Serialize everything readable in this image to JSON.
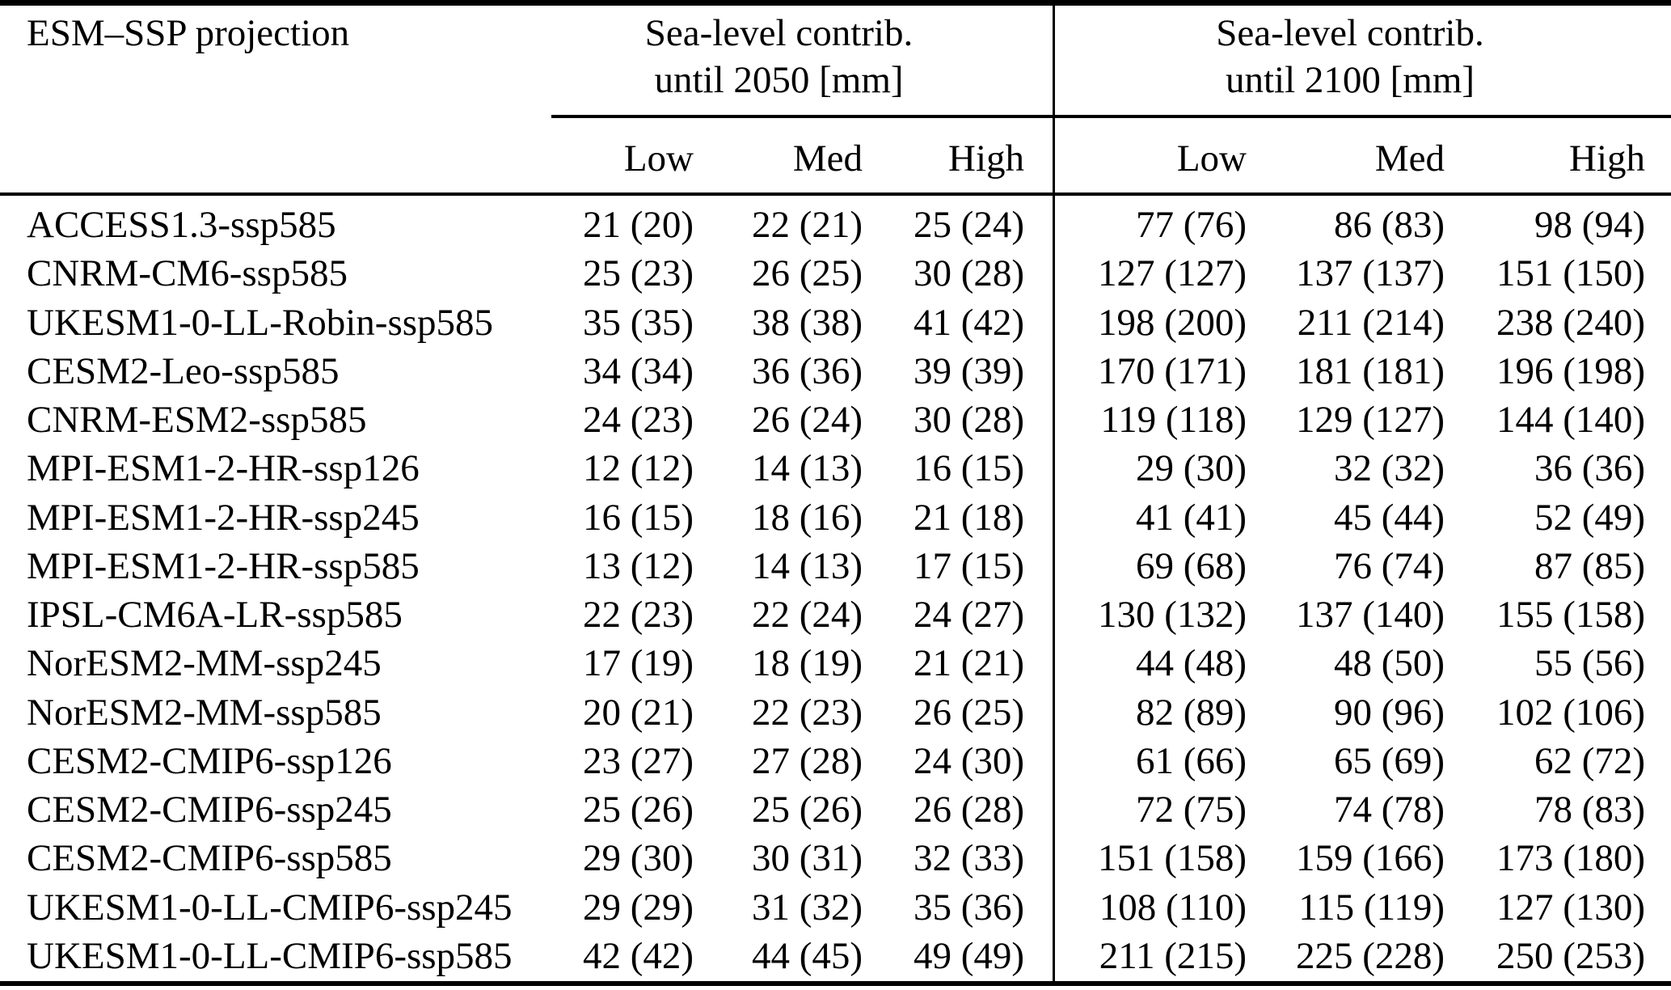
{
  "table": {
    "col1_header": "ESM–SSP projection",
    "groups": [
      {
        "title_line1": "Sea-level contrib.",
        "title_line2": "until 2050 [mm]",
        "subcols": [
          "Low",
          "Med",
          "High"
        ]
      },
      {
        "title_line1": "Sea-level contrib.",
        "title_line2": "until 2100 [mm]",
        "subcols": [
          "Low",
          "Med",
          "High"
        ]
      }
    ],
    "rows": [
      {
        "label": "ACCESS1.3-ssp585",
        "v2050": [
          "21 (20)",
          "22 (21)",
          "25 (24)"
        ],
        "v2100": [
          "77 (76)",
          "86 (83)",
          "98 (94)"
        ]
      },
      {
        "label": "CNRM-CM6-ssp585",
        "v2050": [
          "25 (23)",
          "26 (25)",
          "30 (28)"
        ],
        "v2100": [
          "127 (127)",
          "137 (137)",
          "151 (150)"
        ]
      },
      {
        "label": "UKESM1-0-LL-Robin-ssp585",
        "v2050": [
          "35 (35)",
          "38 (38)",
          "41 (42)"
        ],
        "v2100": [
          "198 (200)",
          "211 (214)",
          "238 (240)"
        ]
      },
      {
        "label": "CESM2-Leo-ssp585",
        "v2050": [
          "34 (34)",
          "36 (36)",
          "39 (39)"
        ],
        "v2100": [
          "170 (171)",
          "181 (181)",
          "196 (198)"
        ]
      },
      {
        "label": "CNRM-ESM2-ssp585",
        "v2050": [
          "24 (23)",
          "26 (24)",
          "30 (28)"
        ],
        "v2100": [
          "119 (118)",
          "129 (127)",
          "144 (140)"
        ]
      },
      {
        "label": "MPI-ESM1-2-HR-ssp126",
        "v2050": [
          "12 (12)",
          "14 (13)",
          "16 (15)"
        ],
        "v2100": [
          "29 (30)",
          "32 (32)",
          "36 (36)"
        ]
      },
      {
        "label": "MPI-ESM1-2-HR-ssp245",
        "v2050": [
          "16 (15)",
          "18 (16)",
          "21 (18)"
        ],
        "v2100": [
          "41 (41)",
          "45 (44)",
          "52 (49)"
        ]
      },
      {
        "label": "MPI-ESM1-2-HR-ssp585",
        "v2050": [
          "13 (12)",
          "14 (13)",
          "17 (15)"
        ],
        "v2100": [
          "69 (68)",
          "76 (74)",
          "87 (85)"
        ]
      },
      {
        "label": "IPSL-CM6A-LR-ssp585",
        "v2050": [
          "22 (23)",
          "22 (24)",
          "24 (27)"
        ],
        "v2100": [
          "130 (132)",
          "137 (140)",
          "155 (158)"
        ]
      },
      {
        "label": "NorESM2-MM-ssp245",
        "v2050": [
          "17 (19)",
          "18 (19)",
          "21 (21)"
        ],
        "v2100": [
          "44 (48)",
          "48 (50)",
          "55 (56)"
        ]
      },
      {
        "label": "NorESM2-MM-ssp585",
        "v2050": [
          "20 (21)",
          "22 (23)",
          "26 (25)"
        ],
        "v2100": [
          "82 (89)",
          "90 (96)",
          "102 (106)"
        ]
      },
      {
        "label": "CESM2-CMIP6-ssp126",
        "v2050": [
          "23 (27)",
          "27 (28)",
          "24 (30)"
        ],
        "v2100": [
          "61 (66)",
          "65 (69)",
          "62 (72)"
        ]
      },
      {
        "label": "CESM2-CMIP6-ssp245",
        "v2050": [
          "25 (26)",
          "25 (26)",
          "26 (28)"
        ],
        "v2100": [
          "72 (75)",
          "74 (78)",
          "78 (83)"
        ]
      },
      {
        "label": "CESM2-CMIP6-ssp585",
        "v2050": [
          "29 (30)",
          "30 (31)",
          "32 (33)"
        ],
        "v2100": [
          "151 (158)",
          "159 (166)",
          "173 (180)"
        ]
      },
      {
        "label": "UKESM1-0-LL-CMIP6-ssp245",
        "v2050": [
          "29 (29)",
          "31 (32)",
          "35 (36)"
        ],
        "v2100": [
          "108 (110)",
          "115 (119)",
          "127 (130)"
        ]
      },
      {
        "label": "UKESM1-0-LL-CMIP6-ssp585",
        "v2050": [
          "42 (42)",
          "44 (45)",
          "49 (49)"
        ],
        "v2100": [
          "211 (215)",
          "225 (228)",
          "250 (253)"
        ]
      }
    ]
  }
}
